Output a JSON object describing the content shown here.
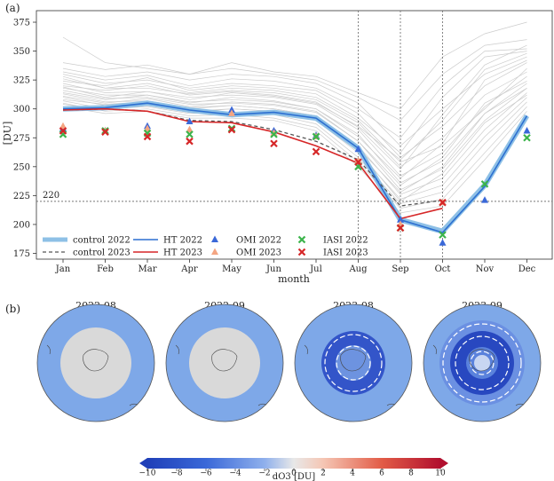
{
  "panel_a_label": "(a)",
  "panel_b_label": "(b)",
  "chart_data": {
    "type": "line",
    "title": "",
    "xlabel": "month",
    "ylabel": "[DU]",
    "ylim": [
      170,
      385
    ],
    "yticks": [
      175,
      200,
      225,
      250,
      275,
      300,
      325,
      350,
      375
    ],
    "categories": [
      "Jan",
      "Feb",
      "Mar",
      "Apr",
      "May",
      "Jun",
      "Jul",
      "Aug",
      "Sep",
      "Oct",
      "Nov",
      "Dec"
    ],
    "threshold": {
      "value": 220,
      "label": "220"
    },
    "vlines": [
      "Aug",
      "Sep",
      "Oct"
    ],
    "series": [
      {
        "name": "control 2022",
        "kind": "band",
        "color": "#8ec0e6",
        "values": [
          300,
          301,
          305,
          299,
          295,
          297,
          292,
          266,
          204,
          194,
          234,
          294
        ]
      },
      {
        "name": "control 2023",
        "kind": "dashed",
        "color": "#555555",
        "values": [
          299,
          300,
          298,
          290,
          289,
          282,
          272,
          256,
          216,
          221,
          null,
          null
        ]
      },
      {
        "name": "HT 2022",
        "kind": "line",
        "color": "#2c6fd1",
        "values": [
          300,
          301,
          305,
          299,
          295,
          297,
          292,
          266,
          204,
          193,
          233,
          294
        ]
      },
      {
        "name": "HT 2023",
        "kind": "line",
        "color": "#d62728",
        "values": [
          299,
          300,
          298,
          289,
          288,
          280,
          268,
          253,
          205,
          214,
          null,
          null
        ]
      },
      {
        "name": "OMI 2022",
        "kind": "marker-up",
        "color": "#3a68d8",
        "values": [
          283,
          281,
          285,
          289,
          299,
          281,
          277,
          265,
          204,
          184,
          221,
          281
        ]
      },
      {
        "name": "OMI 2023",
        "kind": "marker-up",
        "color": "#f4a582",
        "values": [
          285,
          281,
          283,
          282,
          296,
          279,
          276,
          255,
          200,
          219,
          null,
          null
        ]
      },
      {
        "name": "IASI 2022",
        "kind": "marker-x",
        "color": "#3cb44b",
        "values": [
          278,
          281,
          279,
          278,
          283,
          278,
          276,
          250,
          197,
          191,
          235,
          275
        ]
      },
      {
        "name": "IASI 2023",
        "kind": "marker-x",
        "color": "#d62728",
        "values": [
          281,
          280,
          276,
          272,
          282,
          270,
          263,
          254,
          197,
          219,
          null,
          null
        ]
      }
    ],
    "background_years": {
      "color": "#cccccc",
      "lines": [
        [
          335,
          328,
          332,
          325,
          330,
          328,
          322,
          305,
          268,
          300,
          330,
          345
        ],
        [
          330,
          322,
          325,
          318,
          322,
          320,
          316,
          296,
          258,
          285,
          320,
          340
        ],
        [
          326,
          318,
          318,
          313,
          316,
          314,
          308,
          288,
          250,
          275,
          312,
          332
        ],
        [
          322,
          314,
          315,
          310,
          312,
          310,
          304,
          282,
          242,
          262,
          302,
          328
        ],
        [
          318,
          312,
          312,
          306,
          308,
          306,
          300,
          278,
          236,
          255,
          296,
          322
        ],
        [
          316,
          309,
          310,
          304,
          305,
          303,
          297,
          272,
          230,
          248,
          290,
          318
        ],
        [
          313,
          306,
          307,
          301,
          303,
          300,
          294,
          268,
          226,
          240,
          282,
          314
        ],
        [
          310,
          303,
          305,
          298,
          300,
          298,
          290,
          262,
          222,
          234,
          276,
          310
        ],
        [
          307,
          300,
          302,
          296,
          297,
          295,
          287,
          258,
          218,
          228,
          270,
          306
        ],
        [
          305,
          298,
          300,
          294,
          295,
          292,
          284,
          254,
          214,
          222,
          262,
          302
        ],
        [
          302,
          296,
          298,
          292,
          292,
          290,
          281,
          250,
          210,
          216,
          256,
          298
        ],
        [
          340,
          334,
          338,
          330,
          335,
          330,
          325,
          310,
          290,
          330,
          355,
          360
        ],
        [
          324,
          320,
          327,
          316,
          320,
          318,
          313,
          292,
          262,
          310,
          345,
          350
        ],
        [
          320,
          316,
          320,
          312,
          315,
          312,
          306,
          284,
          248,
          295,
          338,
          355
        ],
        [
          362,
          340,
          335,
          330,
          340,
          332,
          328,
          314,
          300,
          345,
          365,
          375
        ],
        [
          328,
          318,
          322,
          314,
          318,
          316,
          310,
          290,
          254,
          268,
          300,
          335
        ],
        [
          314,
          308,
          312,
          305,
          310,
          307,
          300,
          276,
          240,
          270,
          325,
          342
        ],
        [
          319,
          310,
          315,
          308,
          314,
          311,
          305,
          285,
          256,
          290,
          334,
          348
        ],
        [
          311,
          305,
          309,
          302,
          306,
          304,
          298,
          272,
          234,
          258,
          305,
          324
        ],
        [
          308,
          304,
          306,
          300,
          303,
          300,
          294,
          266,
          228,
          250,
          296,
          318
        ],
        [
          332,
          325,
          329,
          320,
          326,
          324,
          318,
          300,
          275,
          320,
          350,
          352
        ],
        [
          304,
          299,
          303,
          297,
          300,
          298,
          291,
          264,
          220,
          244,
          288,
          312
        ]
      ]
    },
    "maps": {
      "titles": [
        "2022-08",
        "2022-09",
        "2023-08",
        "2023-09"
      ],
      "colorbar": {
        "label": "dO3 [DU]",
        "min": -10,
        "max": 10,
        "ticks": [
          -10,
          -8,
          -6,
          -4,
          -2,
          0,
          2,
          4,
          6,
          8,
          10
        ]
      }
    }
  }
}
